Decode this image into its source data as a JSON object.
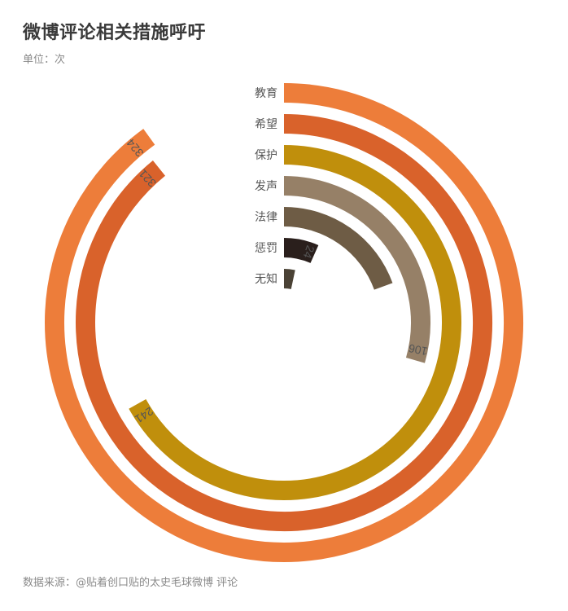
{
  "title": "微博评论相关措施呼吁",
  "subtitle": "单位：次",
  "source": "数据来源：@贴着创口贴的太史毛球微博 评论",
  "chart_data": {
    "type": "radial-bar",
    "max_value": 360,
    "series": [
      {
        "category": "教育",
        "value": 324,
        "color": "#ED7D3A",
        "value_label": "324",
        "show_label": true
      },
      {
        "category": "希望",
        "value": 321,
        "color": "#D9622B",
        "value_label": "321",
        "show_label": true
      },
      {
        "category": "保护",
        "value": 241,
        "color": "#C08F0C",
        "value_label": "241",
        "show_label": true
      },
      {
        "category": "发声",
        "value": 106,
        "color": "#968067",
        "value_label": "106",
        "show_label": true
      },
      {
        "category": "法律",
        "value": 70,
        "color": "#6E5C45",
        "value_label": "",
        "show_label": false
      },
      {
        "category": "惩罚",
        "value": 24,
        "color": "#2A1F1C",
        "value_label": "24",
        "show_label": true
      },
      {
        "category": "无知",
        "value": 12,
        "color": "#4A4235",
        "value_label": "",
        "show_label": false
      }
    ],
    "label_colors": {
      "category_text": "#555555",
      "value_text_light": "#ffffff",
      "value_text_dark": "#555555"
    }
  }
}
